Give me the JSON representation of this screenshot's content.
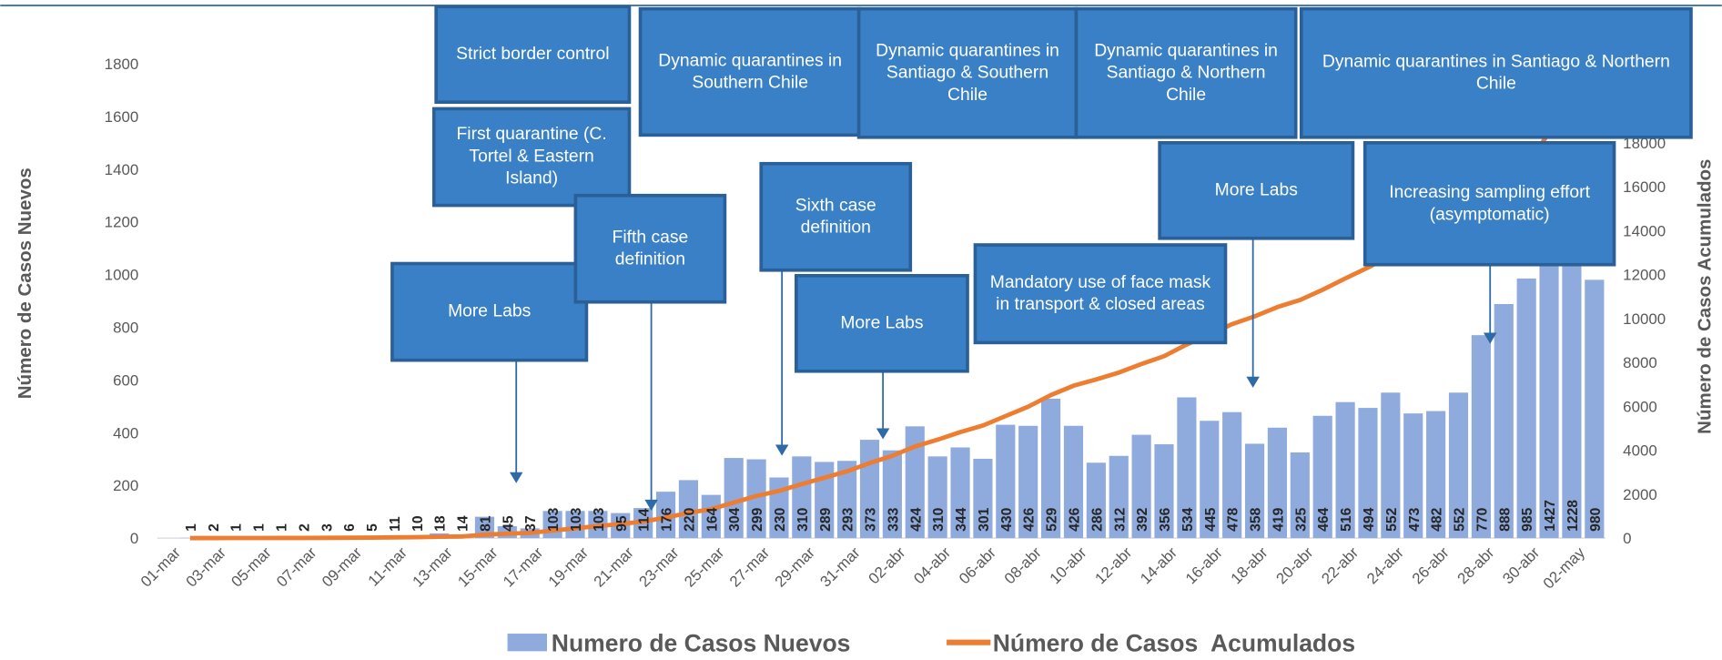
{
  "chart_data": {
    "type": "bar",
    "categories": [
      "01-mar",
      null,
      "03-mar",
      null,
      "05-mar",
      null,
      "07-mar",
      null,
      "09-mar",
      null,
      "11-mar",
      null,
      "13-mar",
      null,
      "15-mar",
      null,
      "17-mar",
      null,
      "19-mar",
      null,
      "21-mar",
      null,
      "23-mar",
      null,
      "25-mar",
      null,
      "27-mar",
      null,
      "29-mar",
      null,
      "31-mar",
      null,
      "02-abr",
      null,
      "04-abr",
      null,
      "06-abr",
      null,
      "08-abr",
      null,
      "10-abr",
      null,
      "12-abr",
      null,
      "14-abr",
      null,
      "16-abr",
      null,
      "18-abr",
      null,
      "20-abr",
      null,
      "22-abr",
      null,
      "24-abr",
      null,
      "26-abr",
      null,
      "28-abr",
      null,
      "30-abr",
      null,
      "02-may"
    ],
    "series": [
      {
        "name": "Numero de Casos Nuevos",
        "color": "#8faadc",
        "values": [
          1,
          2,
          1,
          1,
          1,
          2,
          3,
          6,
          5,
          11,
          10,
          18,
          14,
          81,
          45,
          37,
          103,
          103,
          103,
          95,
          114,
          176,
          220,
          164,
          304,
          299,
          230,
          310,
          289,
          293,
          373,
          333,
          424,
          310,
          344,
          301,
          430,
          426,
          529,
          426,
          286,
          312,
          392,
          356,
          534,
          445,
          478,
          358,
          419,
          325,
          464,
          516,
          494,
          552,
          473,
          482,
          552,
          770,
          888,
          985,
          1427,
          1228,
          980
        ]
      },
      {
        "name": "Número de Casos  Acumulados",
        "type": "line",
        "axis": "y2",
        "color": "#ed7d31",
        "values": [
          1,
          3,
          4,
          5,
          6,
          8,
          11,
          17,
          22,
          33,
          43,
          61,
          75,
          156,
          201,
          238,
          341,
          444,
          547,
          642,
          756,
          932,
          1152,
          1316,
          1620,
          1919,
          2149,
          2459,
          2748,
          3041,
          3414,
          3747,
          4171,
          4481,
          4825,
          5126,
          5556,
          5982,
          6511,
          6937,
          7223,
          7535,
          7927,
          8283,
          8817,
          9262,
          9740,
          10098,
          10517,
          10842,
          11306,
          11822,
          12316,
          12868,
          13341,
          13823,
          14375,
          15145,
          16033,
          17018,
          18445,
          19673,
          20653
        ]
      }
    ],
    "ylabel": "Número de Casos Nuevos",
    "y2label": "Número de Casos Acumulados",
    "ylim": [
      0,
      2000
    ],
    "yticks": [
      0,
      200,
      400,
      600,
      800,
      1000,
      1200,
      1400,
      1600,
      1800
    ],
    "y2lim": [
      0,
      24000
    ],
    "y2ticks": [
      0,
      2000,
      4000,
      6000,
      8000,
      10000,
      12000,
      14000,
      16000,
      18000
    ],
    "annotations": [
      "Strict border control",
      "First quarantine (C. Tortel & Eastern Island)",
      "More Labs",
      "Fifth case definition",
      "Sixth case definition",
      "More Labs",
      "Dynamic quarantines in Southern Chile",
      "Dynamic quarantines in Santiago & Southern Chile",
      "Dynamic quarantines in Santiago & Northern Chile",
      "Dynamic quarantines in Santiago & Northern Chile",
      "Mandatory use of face mask in transport & closed areas",
      "More Labs",
      "Increasing sampling effort (asymptomatic)"
    ]
  }
}
